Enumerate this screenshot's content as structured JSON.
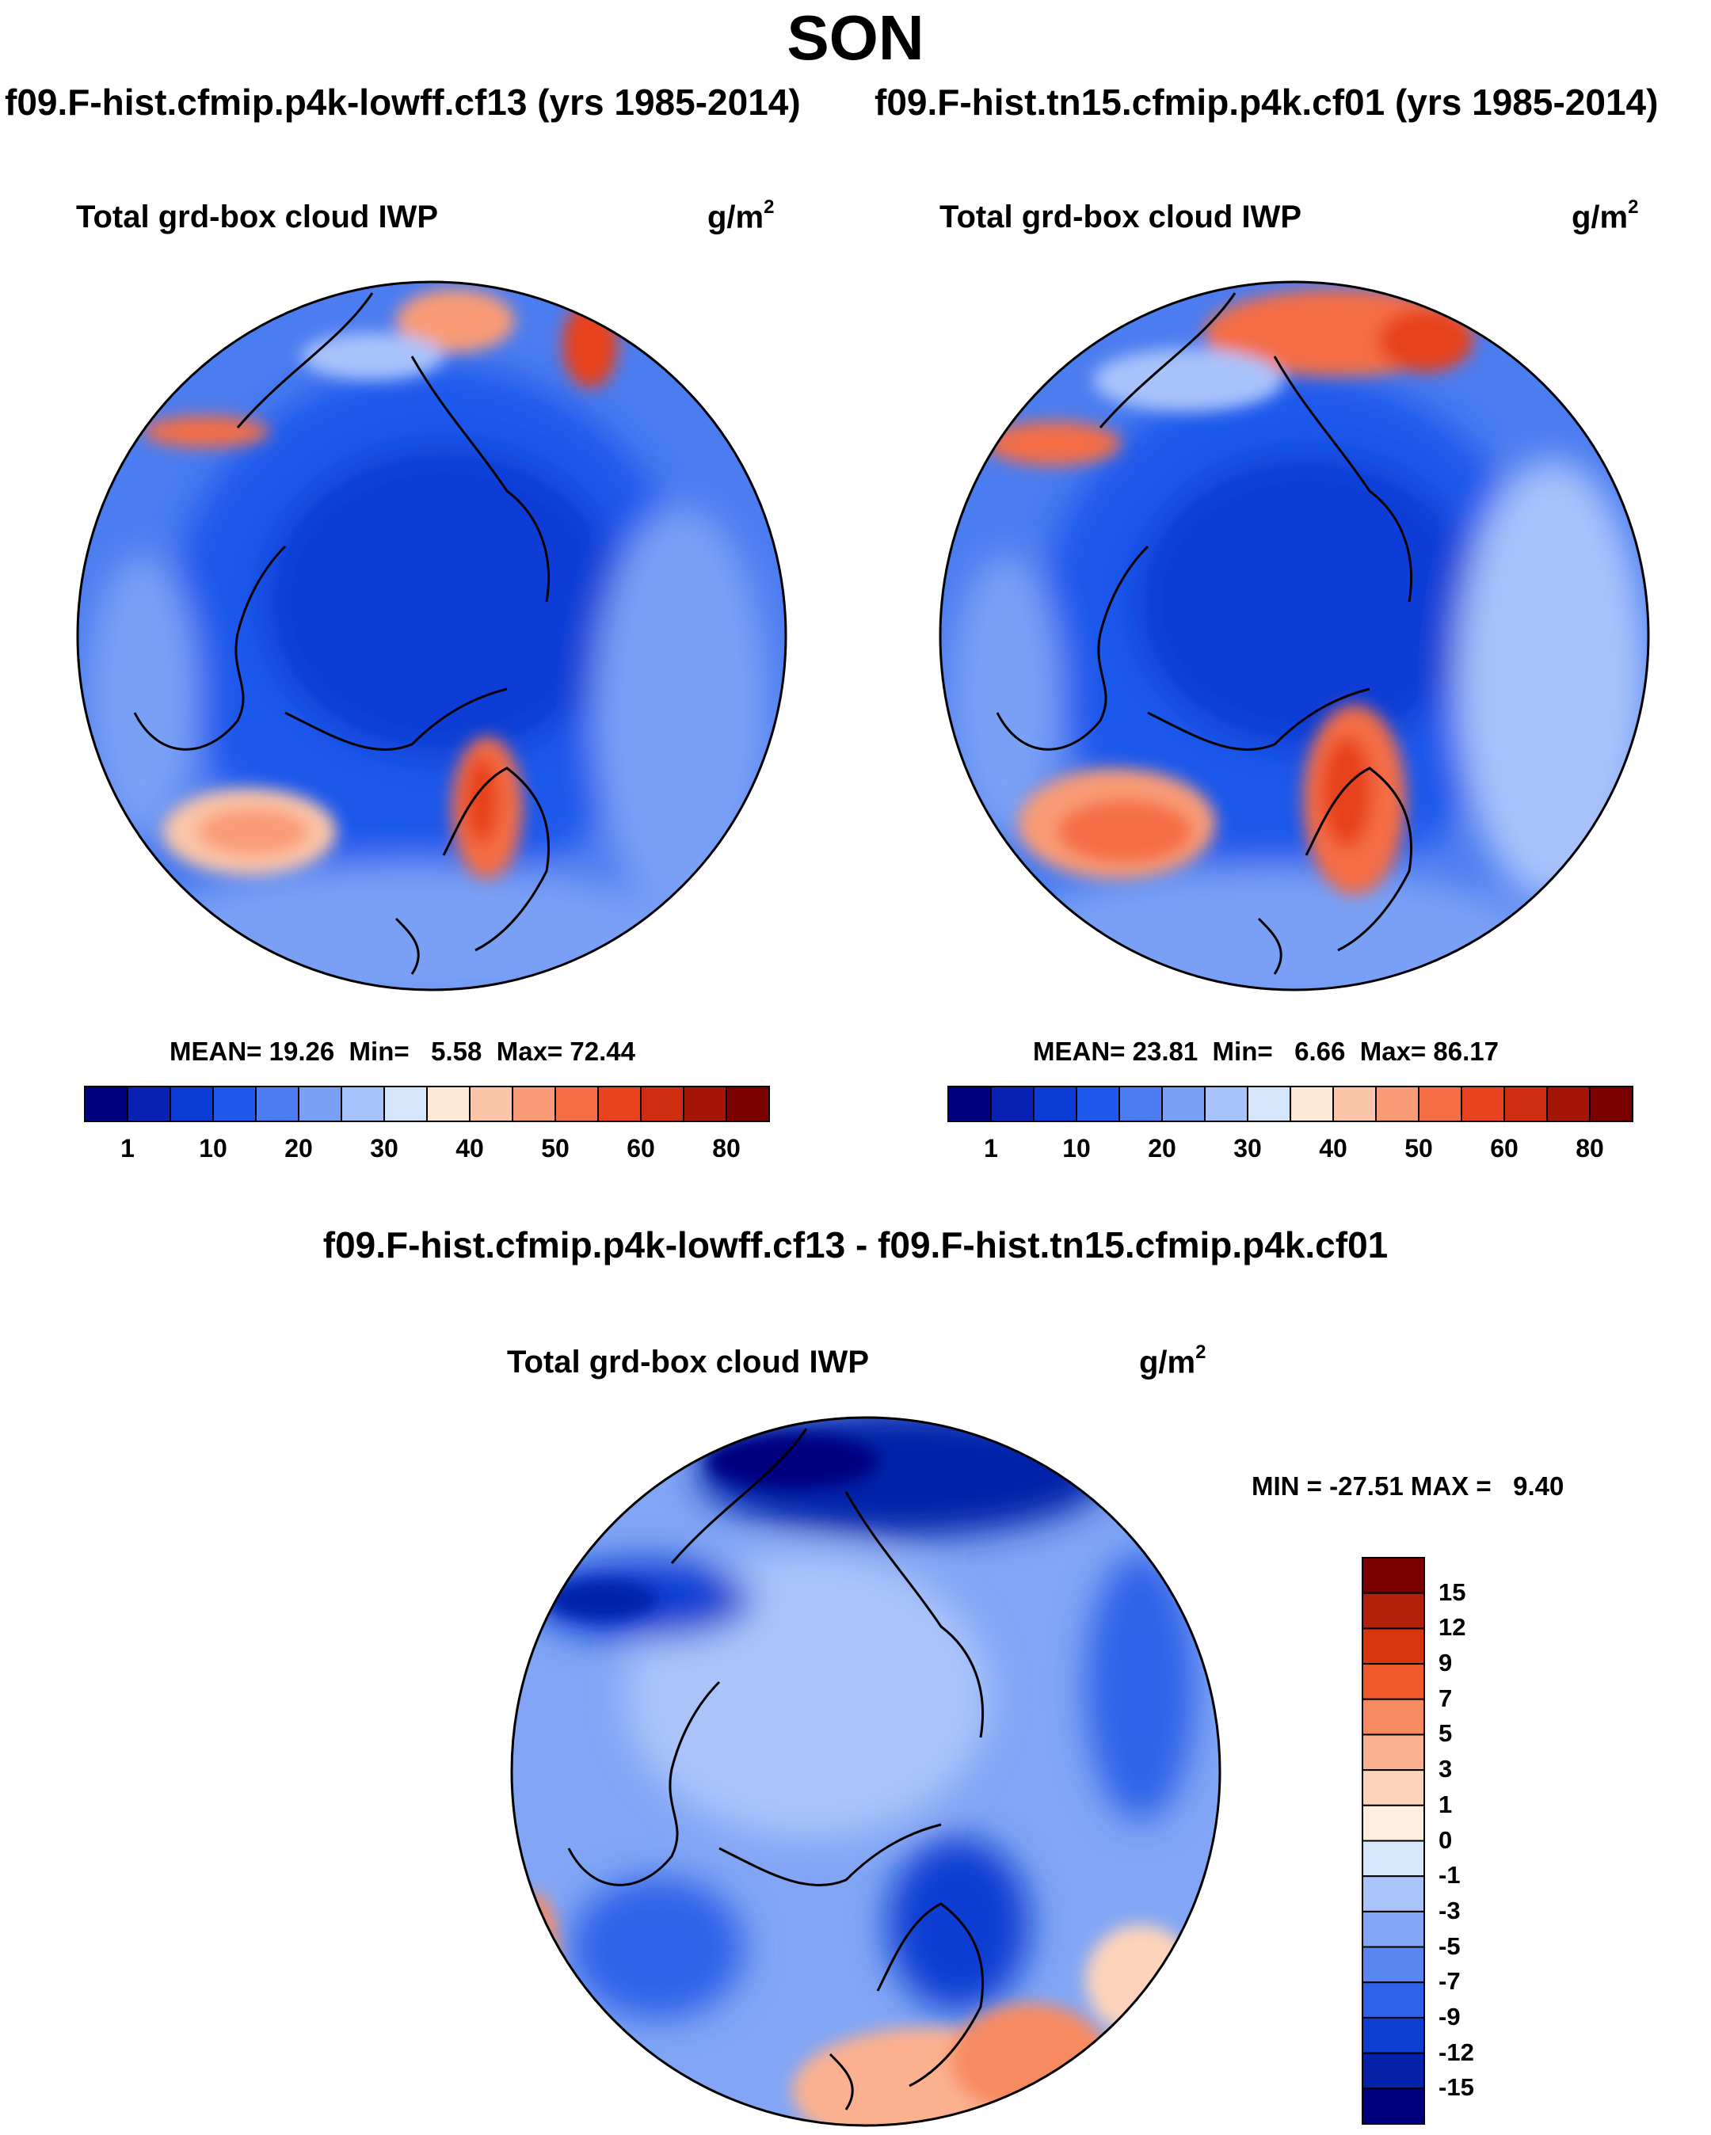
{
  "title": "SON",
  "panels": [
    {
      "case": "f09.F-hist.cfmip.p4k-lowff.cf13 (yrs 1985-2014)",
      "variable": "Total grd-box cloud IWP",
      "unit_base": "g/m",
      "unit_exp": "2",
      "stats": {
        "mean_label": "MEAN=",
        "mean": "19.26",
        "min_label": "Min=",
        "min": "5.58",
        "max_label": "Max=",
        "max": "72.44"
      }
    },
    {
      "case": "f09.F-hist.tn15.cfmip.p4k.cf01 (yrs 1985-2014)",
      "variable": "Total grd-box cloud IWP",
      "unit_base": "g/m",
      "unit_exp": "2",
      "stats": {
        "mean_label": "MEAN=",
        "mean": "23.81",
        "min_label": "Min=",
        "min": "6.66",
        "max_label": "Max=",
        "max": "86.17"
      }
    }
  ],
  "difference": {
    "title": "f09.F-hist.cfmip.p4k-lowff.cf13 - f09.F-hist.tn15.cfmip.p4k.cf01",
    "variable": "Total grd-box cloud IWP",
    "unit_base": "g/m",
    "unit_exp": "2",
    "range_text": "MIN = -27.51 MAX =   9.40"
  },
  "chart_data": [
    {
      "type": "heatmap",
      "projection": "north polar stereographic",
      "title": "Total grd-box cloud IWP",
      "unit": "g/m^2",
      "summary": {
        "mean": 19.26,
        "min": 5.58,
        "max": 72.44
      },
      "colorbar": {
        "orientation": "horizontal",
        "tick_labels": [
          "1",
          "10",
          "20",
          "30",
          "40",
          "50",
          "60",
          "80"
        ],
        "colors": [
          "#00007f",
          "#0a22b4",
          "#0b3cd6",
          "#1f58ec",
          "#4b7cf0",
          "#7aa0f6",
          "#a8c2fb",
          "#d5e6fc",
          "#fde8d6",
          "#fbc5a8",
          "#f99b76",
          "#f46d44",
          "#e8431e",
          "#cf2d10",
          "#a41508",
          "#7b0000"
        ]
      }
    },
    {
      "type": "heatmap",
      "projection": "north polar stereographic",
      "title": "Total grd-box cloud IWP",
      "unit": "g/m^2",
      "summary": {
        "mean": 23.81,
        "min": 6.66,
        "max": 86.17
      },
      "colorbar": {
        "orientation": "horizontal",
        "tick_labels": [
          "1",
          "10",
          "20",
          "30",
          "40",
          "50",
          "60",
          "80"
        ],
        "colors": [
          "#00007f",
          "#0a22b4",
          "#0b3cd6",
          "#1f58ec",
          "#4b7cf0",
          "#7aa0f6",
          "#a8c2fb",
          "#d5e6fc",
          "#fde8d6",
          "#fbc5a8",
          "#f99b76",
          "#f46d44",
          "#e8431e",
          "#cf2d10",
          "#a41508",
          "#7b0000"
        ]
      }
    },
    {
      "type": "heatmap",
      "projection": "north polar stereographic",
      "title": "Total grd-box cloud IWP (difference)",
      "unit": "g/m^2",
      "summary": {
        "min": -27.51,
        "max": 9.4
      },
      "colorbar": {
        "orientation": "vertical",
        "tick_labels": [
          "15",
          "12",
          "9",
          "7",
          "5",
          "3",
          "1",
          "0",
          "-1",
          "-3",
          "-5",
          "-7",
          "-9",
          "-12",
          "-15"
        ],
        "colors": [
          "#7b0000",
          "#b3200b",
          "#d8360f",
          "#ef5a2c",
          "#f88a60",
          "#fbb08f",
          "#fdd3bb",
          "#fdeee0",
          "#d6e8fc",
          "#aac4fa",
          "#82a6f5",
          "#5a86f0",
          "#2f62e8",
          "#0f3ed2",
          "#0522a8",
          "#00007f"
        ]
      }
    }
  ]
}
